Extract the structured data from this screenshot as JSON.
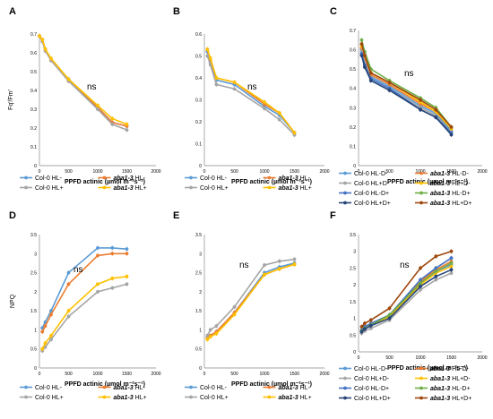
{
  "chart_data": [
    {
      "panel": "A",
      "type": "line",
      "xlabel": "PPFD actinic (µmol m⁻²s⁻¹)",
      "ylabel": "Fq'/Fm'",
      "xlim": [
        0,
        2000
      ],
      "ylim": [
        0,
        0.7
      ],
      "xticks": [
        "0",
        "500",
        "1000",
        "1500",
        "2000"
      ],
      "yticks": [
        "0",
        "0.1",
        "0.2",
        "0.3",
        "0.4",
        "0.5",
        "0.6",
        "0.7"
      ],
      "annotation": "ns",
      "x": [
        0,
        50,
        100,
        200,
        500,
        1000,
        1250,
        1500
      ],
      "series": [
        {
          "name": "Col-0 HL-",
          "color": "#5b9bd5",
          "values": [
            0.69,
            0.67,
            0.62,
            0.56,
            0.46,
            0.31,
            0.23,
            0.21
          ]
        },
        {
          "name": "aba1-3 HL-",
          "color": "#ed7d31",
          "values": [
            0.69,
            0.67,
            0.62,
            0.56,
            0.45,
            0.31,
            0.23,
            0.21
          ]
        },
        {
          "name": "Col-0 HL+",
          "color": "#a5a5a5",
          "values": [
            0.69,
            0.66,
            0.61,
            0.56,
            0.45,
            0.3,
            0.22,
            0.19
          ]
        },
        {
          "name": "aba1-3 HL+",
          "color": "#ffc000",
          "values": [
            0.69,
            0.67,
            0.62,
            0.57,
            0.46,
            0.32,
            0.25,
            0.22
          ]
        }
      ],
      "legend": [
        {
          "name": "Col-0 HL-",
          "italic": false
        },
        {
          "name": "aba1-3",
          "suffix": " HL-",
          "italic": true
        },
        {
          "name": "Col-0 HL+",
          "italic": false
        },
        {
          "name": "aba1-3",
          "suffix": " HL+",
          "italic": true
        }
      ]
    },
    {
      "panel": "B",
      "type": "line",
      "xlabel": "PPFD actinic (µmol m⁻²s⁻¹)",
      "ylabel": "",
      "xlim": [
        0,
        2000
      ],
      "ylim": [
        0,
        0.6
      ],
      "xticks": [
        "0",
        "500",
        "1000",
        "1500",
        "2000"
      ],
      "yticks": [
        "0",
        "0.1",
        "0.2",
        "0.3",
        "0.4",
        "0.5",
        "0.6"
      ],
      "annotation": "ns",
      "x": [
        50,
        100,
        200,
        500,
        1000,
        1250,
        1500
      ],
      "series": [
        {
          "name": "Col-0 HL-",
          "color": "#5b9bd5",
          "values": [
            0.52,
            0.47,
            0.39,
            0.37,
            0.27,
            0.23,
            0.15
          ]
        },
        {
          "name": "aba1-3 HL-",
          "color": "#ed7d31",
          "values": [
            0.53,
            0.48,
            0.4,
            0.38,
            0.28,
            0.24,
            0.15
          ]
        },
        {
          "name": "Col-0 HL+",
          "color": "#a5a5a5",
          "values": [
            0.5,
            0.46,
            0.37,
            0.35,
            0.26,
            0.21,
            0.14
          ]
        },
        {
          "name": "aba1-3 HL+",
          "color": "#ffc000",
          "values": [
            0.53,
            0.49,
            0.4,
            0.38,
            0.29,
            0.24,
            0.15
          ]
        }
      ],
      "legend": [
        {
          "name": "Col-0 HL-",
          "italic": false
        },
        {
          "name": "aba1-3",
          "suffix": " HL-",
          "italic": true
        },
        {
          "name": "Col-0 HL+",
          "italic": false
        },
        {
          "name": "aba1-3",
          "suffix": " HL+",
          "italic": true
        }
      ]
    },
    {
      "panel": "C",
      "type": "line",
      "xlabel": "PPFD actinic (µmol m⁻²s⁻¹)",
      "ylabel": "",
      "xlim": [
        0,
        2000
      ],
      "ylim": [
        0,
        0.7
      ],
      "xticks": [
        "0",
        "500",
        "1000",
        "1500",
        "2000"
      ],
      "yticks": [
        "0",
        "0.1",
        "0.2",
        "0.3",
        "0.4",
        "0.5",
        "0.6",
        "0.7"
      ],
      "annotation": "ns",
      "x": [
        50,
        100,
        200,
        500,
        1000,
        1250,
        1500
      ],
      "series": [
        {
          "name": "Col-0 HL-D-",
          "color": "#5b9bd5",
          "values": [
            0.6,
            0.54,
            0.46,
            0.41,
            0.31,
            0.27,
            0.18
          ]
        },
        {
          "name": "aba1-3 HL-D-",
          "color": "#ed7d31",
          "values": [
            0.61,
            0.56,
            0.47,
            0.42,
            0.32,
            0.28,
            0.19
          ]
        },
        {
          "name": "Col-0 HL+D-",
          "color": "#a5a5a5",
          "values": [
            0.59,
            0.53,
            0.45,
            0.4,
            0.3,
            0.26,
            0.17
          ]
        },
        {
          "name": "aba1-3 HL+D-",
          "color": "#ffc000",
          "values": [
            0.62,
            0.57,
            0.48,
            0.43,
            0.33,
            0.28,
            0.19
          ]
        },
        {
          "name": "Col-0 HL-D+",
          "color": "#4472c4",
          "values": [
            0.58,
            0.52,
            0.45,
            0.4,
            0.29,
            0.25,
            0.17
          ]
        },
        {
          "name": "aba1-3 HL-D+",
          "color": "#70ad47",
          "values": [
            0.65,
            0.59,
            0.5,
            0.44,
            0.35,
            0.3,
            0.2
          ]
        },
        {
          "name": "Col-0 HL+D+",
          "color": "#264478",
          "values": [
            0.57,
            0.51,
            0.44,
            0.39,
            0.29,
            0.25,
            0.16
          ]
        },
        {
          "name": "aba1-3 HL+D+",
          "color": "#9e480e",
          "values": [
            0.63,
            0.57,
            0.48,
            0.43,
            0.34,
            0.29,
            0.2
          ]
        }
      ],
      "legend": [
        {
          "name": "Col-0 HL-D-",
          "italic": false
        },
        {
          "name": "aba1-3",
          "suffix": " HL-D-",
          "italic": true
        },
        {
          "name": "Col-0 HL+D-",
          "italic": false
        },
        {
          "name": "aba1-3",
          "suffix": " HL+D-",
          "italic": true
        },
        {
          "name": "Col-0 HL-D+",
          "italic": false
        },
        {
          "name": "aba1-3",
          "suffix": " HL-D+",
          "italic": true
        },
        {
          "name": "Col-0 HL+D+",
          "italic": false
        },
        {
          "name": "aba1-3",
          "suffix": " HL+D+",
          "italic": true
        }
      ]
    },
    {
      "panel": "D",
      "type": "line",
      "xlabel": "PPFD actinic (µmol m⁻²s⁻¹)",
      "ylabel": "NPQ",
      "xlim": [
        0,
        2000
      ],
      "ylim": [
        0,
        3.5
      ],
      "xticks": [
        "0",
        "500",
        "1000",
        "1500",
        "2000"
      ],
      "yticks": [
        "0",
        "0.5",
        "1",
        "1.5",
        "2",
        "2.5",
        "3",
        "3.5"
      ],
      "annotation": "ns",
      "x": [
        50,
        100,
        200,
        500,
        1000,
        1250,
        1500
      ],
      "series": [
        {
          "name": "Col-0 HL-",
          "color": "#5b9bd5",
          "values": [
            1.05,
            1.2,
            1.5,
            2.5,
            3.15,
            3.15,
            3.12
          ]
        },
        {
          "name": "aba1-3 HL-",
          "color": "#ed7d31",
          "values": [
            0.95,
            1.1,
            1.4,
            2.2,
            2.95,
            3.0,
            3.0
          ]
        },
        {
          "name": "Col-0 HL+",
          "color": "#a5a5a5",
          "values": [
            0.45,
            0.55,
            0.75,
            1.35,
            2.0,
            2.1,
            2.2
          ]
        },
        {
          "name": "aba1-3 HL+",
          "color": "#ffc000",
          "values": [
            0.5,
            0.65,
            0.85,
            1.5,
            2.2,
            2.35,
            2.4
          ]
        }
      ],
      "legend": [
        {
          "name": "Col-0 HL-",
          "italic": false
        },
        {
          "name": "aba1-3",
          "suffix": " HL-",
          "italic": true
        },
        {
          "name": "Col-0 HL+",
          "italic": false
        },
        {
          "name": "aba1-3",
          "suffix": " HL+",
          "italic": true
        }
      ]
    },
    {
      "panel": "E",
      "type": "line",
      "xlabel": "PPFD actinic (µmol m⁻²s⁻¹)",
      "ylabel": "",
      "xlim": [
        0,
        2000
      ],
      "ylim": [
        0,
        3.5
      ],
      "xticks": [
        "0",
        "500",
        "1000",
        "1500",
        "2000"
      ],
      "yticks": [
        "0",
        "0.5",
        "1",
        "1.5",
        "2",
        "2.5",
        "3",
        "3.5"
      ],
      "annotation": "ns",
      "x": [
        50,
        100,
        200,
        500,
        1000,
        1250,
        1500
      ],
      "series": [
        {
          "name": "Col-0 HL-",
          "color": "#5b9bd5",
          "values": [
            0.8,
            0.85,
            0.95,
            1.45,
            2.5,
            2.65,
            2.75
          ]
        },
        {
          "name": "aba1-3 HL-",
          "color": "#ed7d31",
          "values": [
            0.78,
            0.85,
            0.95,
            1.45,
            2.45,
            2.6,
            2.72
          ]
        },
        {
          "name": "Col-0 HL+",
          "color": "#a5a5a5",
          "values": [
            0.85,
            1.0,
            1.1,
            1.6,
            2.7,
            2.8,
            2.85
          ]
        },
        {
          "name": "aba1-3 HL+",
          "color": "#ffc000",
          "values": [
            0.75,
            0.82,
            0.9,
            1.4,
            2.45,
            2.6,
            2.72
          ]
        }
      ],
      "legend": [
        {
          "name": "Col-0 HL-",
          "italic": false
        },
        {
          "name": "aba1-3",
          "suffix": " HL-",
          "italic": true
        },
        {
          "name": "Col-0 HL+",
          "italic": false
        },
        {
          "name": "aba1-3",
          "suffix": " HL+",
          "italic": true
        }
      ]
    },
    {
      "panel": "F",
      "type": "line",
      "xlabel": "PPFD actinic (µmol m⁻²s⁻¹)",
      "ylabel": "",
      "xlim": [
        0,
        2000
      ],
      "ylim": [
        0,
        3.5
      ],
      "xticks": [
        "0",
        "500",
        "1000",
        "1500",
        "2000"
      ],
      "yticks": [
        "0",
        "0.5",
        "1",
        "1.5",
        "2",
        "2.5",
        "3",
        "3.5"
      ],
      "annotation": "ns",
      "x": [
        50,
        100,
        200,
        500,
        1000,
        1250,
        1500
      ],
      "series": [
        {
          "name": "Col-0 HL-D-",
          "color": "#5b9bd5",
          "values": [
            0.6,
            0.7,
            0.8,
            1.05,
            2.05,
            2.4,
            2.6
          ]
        },
        {
          "name": "aba1-3 HL-D-",
          "color": "#ed7d31",
          "values": [
            0.65,
            0.72,
            0.82,
            1.1,
            2.1,
            2.45,
            2.7
          ]
        },
        {
          "name": "Col-0 HL+D-",
          "color": "#a5a5a5",
          "values": [
            0.55,
            0.62,
            0.7,
            0.95,
            1.85,
            2.15,
            2.35
          ]
        },
        {
          "name": "aba1-3 HL+D-",
          "color": "#ffc000",
          "values": [
            0.62,
            0.7,
            0.8,
            1.05,
            2.0,
            2.35,
            2.55
          ]
        },
        {
          "name": "Col-0 HL-D+",
          "color": "#4472c4",
          "values": [
            0.65,
            0.75,
            0.85,
            1.1,
            2.15,
            2.5,
            2.8
          ]
        },
        {
          "name": "aba1-3 HL-D+",
          "color": "#70ad47",
          "values": [
            0.62,
            0.7,
            0.8,
            1.1,
            2.05,
            2.4,
            2.65
          ]
        },
        {
          "name": "Col-0 HL+D+",
          "color": "#264478",
          "values": [
            0.6,
            0.68,
            0.78,
            1.0,
            1.95,
            2.25,
            2.45
          ]
        },
        {
          "name": "aba1-3 HL+D+",
          "color": "#9e480e",
          "values": [
            0.75,
            0.85,
            0.95,
            1.3,
            2.5,
            2.85,
            3.0
          ]
        }
      ],
      "legend": [
        {
          "name": "Col-0 HL-D-",
          "italic": false
        },
        {
          "name": "aba1-3",
          "suffix": " HL-D-",
          "italic": true
        },
        {
          "name": "Col-0 HL+D-",
          "italic": false
        },
        {
          "name": "aba1-3",
          "suffix": " HL+D-",
          "italic": true
        },
        {
          "name": "Col-0 HL-D+",
          "italic": false
        },
        {
          "name": "aba1-3",
          "suffix": " HL-D+",
          "italic": true
        },
        {
          "name": "Col-0 HL+D+",
          "italic": false
        },
        {
          "name": "aba1-3",
          "suffix": " HL+D+",
          "italic": true
        }
      ]
    }
  ]
}
